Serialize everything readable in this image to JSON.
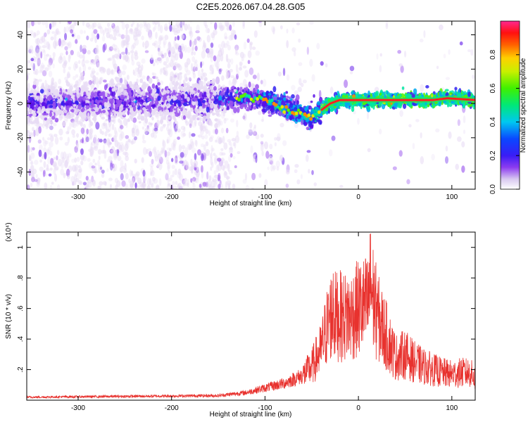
{
  "figure_title": "C2E5.2026.067.04.28.G05",
  "chart_data": [
    {
      "type": "heatmap",
      "title": "C2E5.2026.067.04.28.G05",
      "xlabel": "Height of straight line (km)",
      "ylabel": "Frequency (Hz)",
      "xlim": [
        -355,
        125
      ],
      "ylim": [
        -50,
        48
      ],
      "xticks": [
        -300,
        -200,
        -100,
        0,
        100
      ],
      "yticks": [
        -40,
        -20,
        0,
        20,
        40
      ],
      "colorbar": {
        "label": "Normalized spectral amplitude",
        "range": [
          0.0,
          1.0
        ],
        "ticks": [
          0.0,
          0.2,
          0.4,
          0.6,
          0.8
        ]
      },
      "ridge": {
        "description": "dominant frequency band vs height",
        "x": [
          -355,
          -150,
          -120,
          -100,
          -80,
          -60,
          -50,
          -40,
          -30,
          -20,
          0,
          80,
          95,
          125
        ],
        "y": [
          0,
          2,
          4,
          2,
          -2,
          -6,
          -8,
          -4,
          0,
          2,
          2,
          2,
          3,
          2
        ]
      }
    },
    {
      "type": "line",
      "xlabel": "Height of straight line (km)",
      "ylabel": "SNR (10 * v/v)",
      "ylabel_exponent": "(x10⁴)",
      "xlim": [
        -355,
        125
      ],
      "ylim": [
        0,
        1.1
      ],
      "xticks": [
        -300,
        -200,
        -100,
        0,
        100
      ],
      "yticks": [
        0.2,
        0.4,
        0.6,
        0.8,
        1.0
      ],
      "series": [
        {
          "name": "SNR",
          "color": "#e8322e",
          "envelope": {
            "x": [
              -355,
              -150,
              -120,
              -100,
              -80,
              -60,
              -50,
              -40,
              -35,
              -30,
              -20,
              -10,
              0,
              10,
              13,
              20,
              30,
              40,
              50,
              60,
              70,
              80,
              90,
              100,
              110,
              120,
              125
            ],
            "y": [
              0.02,
              0.03,
              0.05,
              0.08,
              0.11,
              0.16,
              0.22,
              0.33,
              0.45,
              0.55,
              0.55,
              0.54,
              0.6,
              0.62,
              0.75,
              0.55,
              0.42,
              0.28,
              0.3,
              0.25,
              0.22,
              0.2,
              0.18,
              0.17,
              0.18,
              0.18,
              0.14
            ]
          },
          "peaks": [
            {
              "x": -27,
              "y": 0.83
            },
            {
              "x": -12,
              "y": 0.77
            },
            {
              "x": 13,
              "y": 1.09
            },
            {
              "x": 20,
              "y": 0.7
            }
          ]
        }
      ]
    }
  ]
}
